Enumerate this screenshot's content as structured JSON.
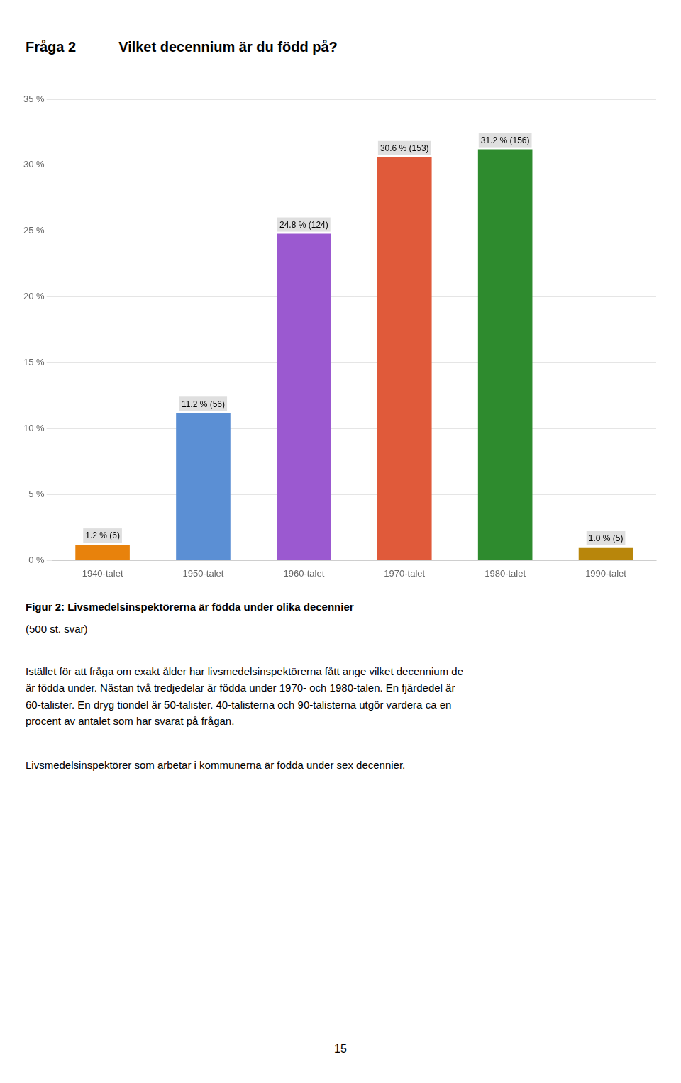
{
  "chart_data": {
    "type": "bar",
    "title": "Fråga 2",
    "subtitle": "Vilket decennium är du född på?",
    "categories": [
      "1940-talet",
      "1950-talet",
      "1960-talet",
      "1970-talet",
      "1980-talet",
      "1990-talet"
    ],
    "values": [
      1.2,
      11.2,
      24.8,
      30.6,
      31.2,
      1.0
    ],
    "value_labels": [
      "1.2 % (6)",
      "11.2 % (56)",
      "24.8 % (124)",
      "30.6 % (153)",
      "31.2 % (156)",
      "1.0 % (5)"
    ],
    "data_labels": true,
    "colors": [
      "#E8820C",
      "#5B8FD4",
      "#9B59D0",
      "#E05A3A",
      "#2E8B2E",
      "#B8860B"
    ],
    "ylim": [
      0,
      35
    ],
    "yticks": [
      {
        "value": 0,
        "label": "0 %"
      },
      {
        "value": 5,
        "label": "5 %"
      },
      {
        "value": 10,
        "label": "10 %"
      },
      {
        "value": 15,
        "label": "15 %"
      },
      {
        "value": 20,
        "label": "20 %"
      },
      {
        "value": 25,
        "label": "25 %"
      },
      {
        "value": 30,
        "label": "30 %"
      },
      {
        "value": 35,
        "label": "35 %"
      }
    ],
    "grid": true,
    "annotations": [
      "Figur 2: Livsmedelsinspektörerna är födda under olika decennier",
      "(500 st. svar)",
      "Istället för att fråga om exakt ålder har livsmedelsinspektörerna fått ange vilket decennium de",
      "är födda under. Nästan två tredjedelar är födda under 1970- och 1980-talen. En fjärdedel är",
      "60-talister. En dryg tiondel är 50-talister. 40-talisterna och 90-talisterna utgör vardera ca en",
      "procent av antalet som har svarat på frågan.",
      "Livsmedelsinspektörer som arbetar i kommunerna är födda under sex decennier.",
      "15"
    ]
  }
}
